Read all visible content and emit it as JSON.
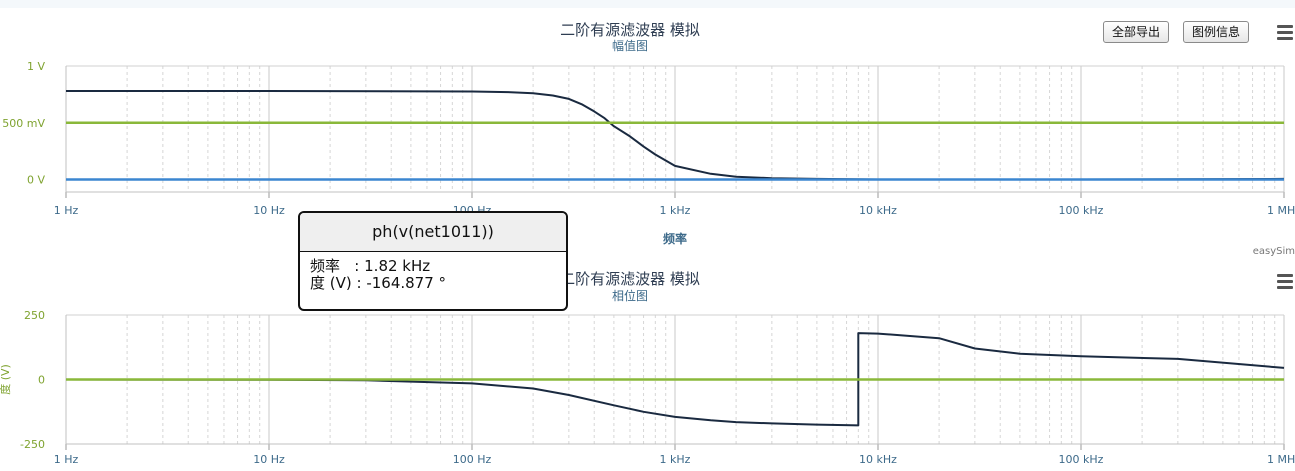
{
  "toolbar": {
    "export_all_label": "全部导出",
    "legend_info_label": "图例信息"
  },
  "credit": "easySim",
  "x_tick_labels": [
    "1 Hz",
    "10 Hz",
    "100 Hz",
    "1 kHz",
    "10 kHz",
    "100 kHz",
    "1 MHz"
  ],
  "tooltip": {
    "title": "ph(v(net1011))",
    "freq_line": "频率   : 1.82 kHz",
    "deg_line": "度 (V) : -164.877 °"
  },
  "colors": {
    "navy": "#1a2a40",
    "green": "#8ab83a",
    "blue": "#3b86d0",
    "axis_text": "#3d6a8a",
    "green_text": "#7fa330"
  },
  "chart_data": [
    {
      "type": "line",
      "title": "二阶有源滤波器 模拟",
      "subtitle": "幅值图",
      "xlabel": "频率",
      "ylabel": "",
      "xscale": "log",
      "xlim": [
        1,
        1000000
      ],
      "ylim": [
        -0.11,
        1.0
      ],
      "y_ticks": [
        {
          "value": 1.0,
          "label": "1 V"
        },
        {
          "value": 0.5,
          "label": "500 mV"
        },
        {
          "value": 0.0,
          "label": "0 V"
        }
      ],
      "grid": true,
      "series": [
        {
          "color": "#1a2a40",
          "x": [
            1,
            10,
            100,
            150,
            200,
            250,
            300,
            350,
            400,
            450,
            500,
            600,
            700,
            800,
            1000,
            1500,
            2000,
            3000,
            5000,
            10000,
            100000,
            1000000
          ],
          "y": [
            0.78,
            0.78,
            0.775,
            0.77,
            0.76,
            0.74,
            0.71,
            0.66,
            0.6,
            0.54,
            0.47,
            0.38,
            0.29,
            0.22,
            0.12,
            0.05,
            0.025,
            0.012,
            0.005,
            0.0,
            0.0,
            0.005
          ]
        },
        {
          "color": "#8ab83a",
          "x": [
            1,
            1000000
          ],
          "y": [
            0.5,
            0.5
          ]
        },
        {
          "color": "#3b86d0",
          "x": [
            1,
            1000000
          ],
          "y": [
            0.0,
            0.0
          ]
        }
      ]
    },
    {
      "type": "line",
      "title": "二阶有源滤波器 模拟",
      "subtitle": "相位图",
      "xlabel": "",
      "ylabel": "度 (V)",
      "xscale": "log",
      "xlim": [
        1,
        1000000
      ],
      "ylim": [
        -250,
        250
      ],
      "y_ticks": [
        {
          "value": 250,
          "label": "250"
        },
        {
          "value": 0,
          "label": "0"
        },
        {
          "value": -250,
          "label": "-250"
        }
      ],
      "grid": true,
      "series": [
        {
          "color": "#1a2a40",
          "x": [
            1,
            10,
            30,
            100,
            200,
            300,
            500,
            700,
            1000,
            1500,
            2000,
            3000,
            5000,
            8000,
            8000,
            10000,
            20000,
            30000,
            50000,
            100000,
            300000,
            1000000
          ],
          "y": [
            0,
            -1,
            -3,
            -15,
            -35,
            -60,
            -100,
            -125,
            -145,
            -158,
            -165,
            -170,
            -175,
            -178,
            180,
            178,
            160,
            120,
            100,
            90,
            80,
            45
          ]
        },
        {
          "color": "#8ab83a",
          "x": [
            1,
            1000000
          ],
          "y": [
            0,
            0
          ]
        }
      ]
    }
  ]
}
